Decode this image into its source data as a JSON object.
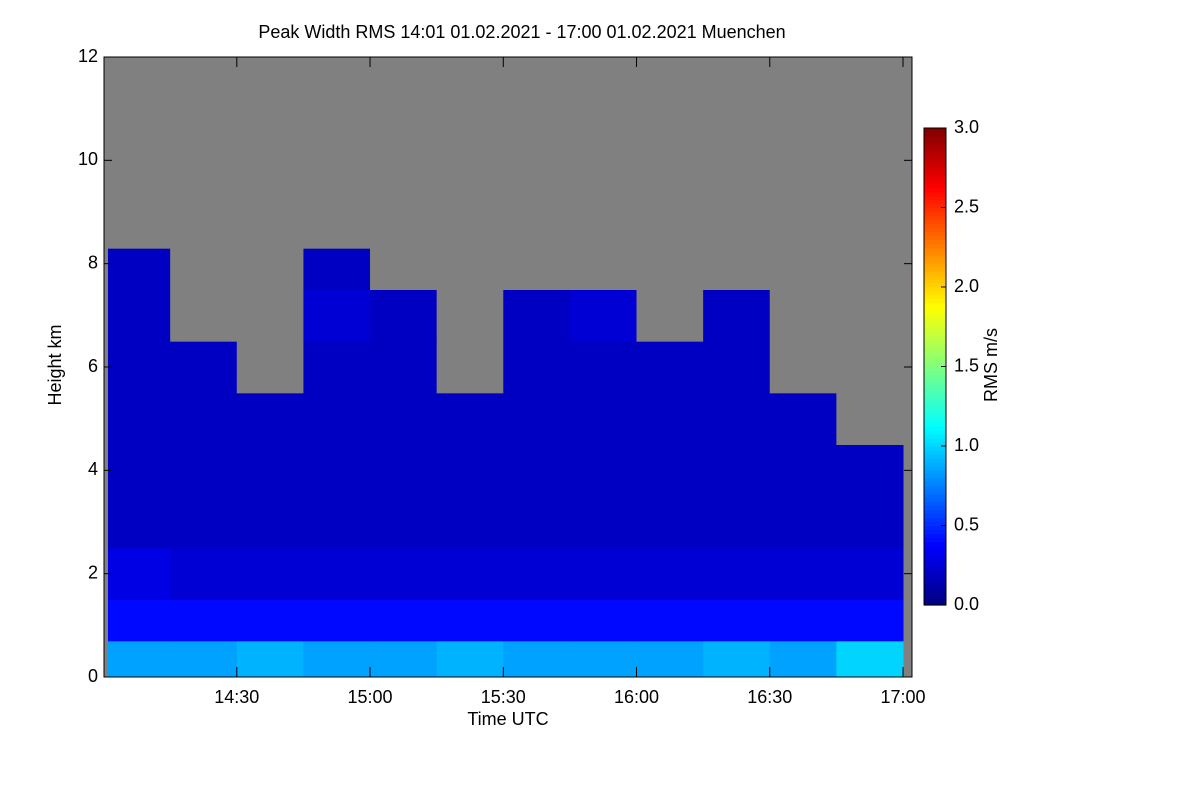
{
  "chart_data": {
    "type": "heatmap",
    "title": "Peak Width RMS   14:01 01.02.2021 - 17:00 01.02.2021 Muenchen",
    "x_label": "Time UTC",
    "y_label": "Height km",
    "colorbar_label": "RMS m/s",
    "xbins": [
      841,
      855,
      870,
      885,
      900,
      915,
      930,
      945,
      960,
      975,
      990,
      1005,
      1020
    ],
    "ybins": [
      0,
      0.7,
      1.5,
      2.5,
      3.5,
      4.5,
      5.5,
      6.5,
      7.5,
      8.3,
      12
    ],
    "z": [
      [
        0.85,
        0.85,
        0.9,
        0.85,
        0.85,
        0.9,
        0.85,
        0.85,
        0.85,
        0.9,
        0.85,
        1.0
      ],
      [
        0.4,
        0.4,
        0.4,
        0.4,
        0.4,
        0.4,
        0.4,
        0.4,
        0.4,
        0.4,
        0.4,
        0.4
      ],
      [
        0.3,
        0.25,
        0.25,
        0.25,
        0.25,
        0.25,
        0.25,
        0.25,
        0.25,
        0.25,
        0.25,
        0.25
      ],
      [
        0.2,
        0.2,
        0.2,
        0.2,
        0.2,
        0.2,
        0.2,
        0.2,
        0.2,
        0.2,
        0.2,
        0.2
      ],
      [
        0.2,
        0.2,
        0.2,
        0.2,
        0.2,
        0.2,
        0.2,
        0.2,
        0.2,
        0.2,
        0.2,
        0.2
      ],
      [
        0.2,
        0.2,
        0.2,
        0.2,
        0.2,
        0.2,
        0.2,
        0.2,
        0.2,
        0.2,
        0.2,
        null
      ],
      [
        0.2,
        0.2,
        null,
        0.2,
        0.2,
        null,
        0.2,
        0.2,
        0.2,
        0.2,
        null,
        null
      ],
      [
        0.2,
        null,
        null,
        0.25,
        0.2,
        null,
        0.2,
        0.25,
        null,
        0.2,
        null,
        null
      ],
      [
        0.2,
        null,
        null,
        0.2,
        null,
        null,
        null,
        null,
        null,
        null,
        null,
        null
      ],
      [
        null,
        null,
        null,
        null,
        null,
        null,
        null,
        null,
        null,
        null,
        null,
        null
      ]
    ],
    "missing_color": "#808080",
    "colormap": "jet",
    "xlim": [
      841,
      1020
    ],
    "xticks": [
      {
        "value": 870,
        "label": "14:30"
      },
      {
        "value": 900,
        "label": "15:00"
      },
      {
        "value": 930,
        "label": "15:30"
      },
      {
        "value": 960,
        "label": "16:00"
      },
      {
        "value": 990,
        "label": "16:30"
      },
      {
        "value": 1020,
        "label": "17:00"
      }
    ],
    "ylim": [
      0,
      12
    ],
    "yticks": [
      0,
      2,
      4,
      6,
      8,
      10,
      12
    ],
    "clim": [
      0,
      3
    ],
    "cticks": [
      {
        "value": 0,
        "label": "0.0"
      },
      0.5,
      {
        "value": 1,
        "label": "1.0"
      },
      1.5,
      {
        "value": 2,
        "label": "2.0"
      },
      2.5,
      {
        "value": 3,
        "label": "3.0"
      }
    ]
  }
}
